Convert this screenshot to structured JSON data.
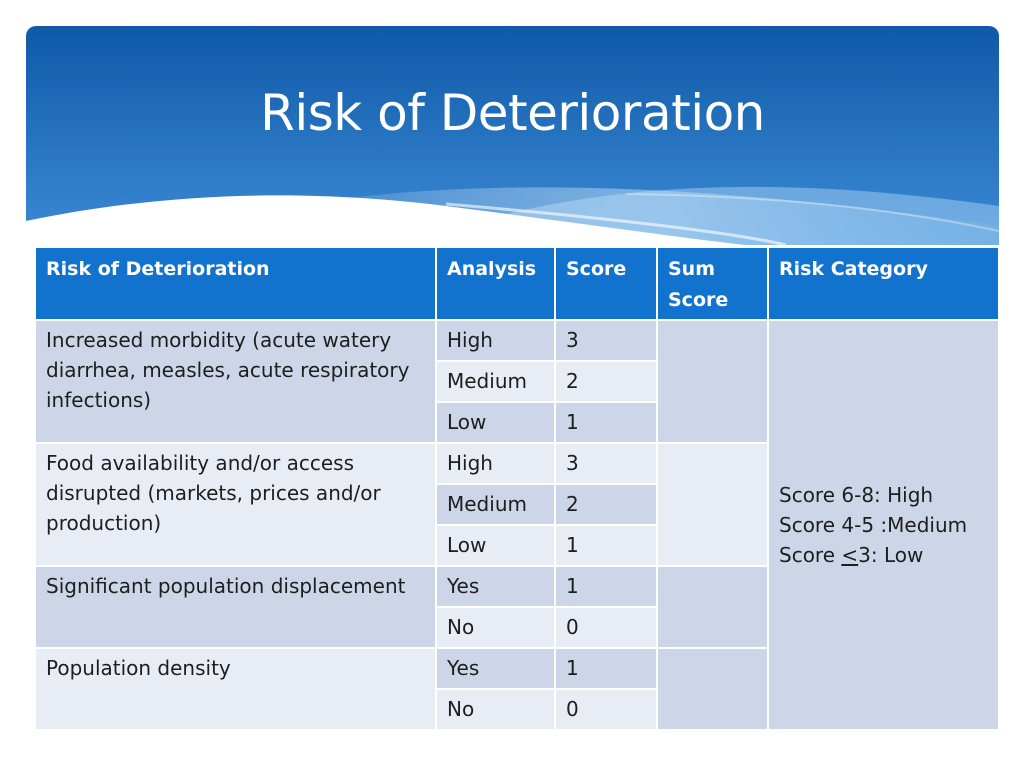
{
  "slide": {
    "title": "Risk of Deterioration",
    "colors": {
      "banner_top": "#0f5fb0",
      "banner_bottom": "#3f8fd8",
      "header_fill": "#1273cf",
      "row_dark": "#cdd6e8",
      "row_light": "#e8ecf5"
    }
  },
  "table": {
    "headers": {
      "risk": "Risk of Deterioration",
      "analysis": "Analysis",
      "score": "Score",
      "sum_score": "Sum Score",
      "risk_category": "Risk Category"
    },
    "groups": [
      {
        "factor": "Increased morbidity (acute watery diarrhea, measles, acute respiratory infections)",
        "rows": [
          {
            "analysis": "High",
            "score": "3"
          },
          {
            "analysis": "Medium",
            "score": "2"
          },
          {
            "analysis": "Low",
            "score": "1"
          }
        ],
        "sum_score": ""
      },
      {
        "factor": "Food availability and/or access disrupted (markets, prices and/or production)",
        "rows": [
          {
            "analysis": "High",
            "score": "3"
          },
          {
            "analysis": "Medium",
            "score": "2"
          },
          {
            "analysis": "Low",
            "score": "1"
          }
        ],
        "sum_score": ""
      },
      {
        "factor": "Significant population displacement",
        "rows": [
          {
            "analysis": "Yes",
            "score": "1"
          },
          {
            "analysis": "No",
            "score": "0"
          }
        ],
        "sum_score": ""
      },
      {
        "factor": "Population density",
        "rows": [
          {
            "analysis": "Yes",
            "score": "1"
          },
          {
            "analysis": "No",
            "score": "0"
          }
        ],
        "sum_score": ""
      }
    ],
    "risk_category": {
      "line1": "Score 6-8: High",
      "line2": "Score 4-5 :Medium",
      "line3_prefix": "Score ",
      "line3_symbol": "<",
      "line3_suffix": "3: Low"
    }
  }
}
